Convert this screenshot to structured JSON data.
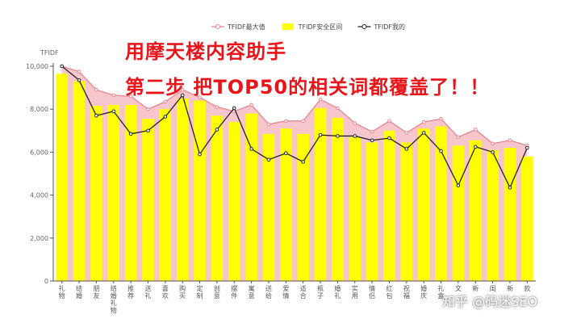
{
  "chart_data": {
    "type": "line",
    "ylabel": "TFIDF",
    "ylim": [
      0,
      10000
    ],
    "yticks": [
      0,
      2000,
      4000,
      6000,
      8000,
      10000
    ],
    "yticklabels": [
      "0",
      "2,000",
      "4,000",
      "6,000",
      "8,000",
      "10,000"
    ],
    "grid": false,
    "legend_position": "top-center",
    "categories": [
      "礼物",
      "结婚",
      "朋友",
      "结婚礼物",
      "推荐",
      "送礼",
      "喜欢",
      "购买",
      "定制",
      "创意",
      "摆件",
      "寓意",
      "送给",
      "爱情",
      "适合",
      "瓶子",
      "婚礼",
      "实用",
      "情侣",
      "红包",
      "祝福",
      "婚庆",
      "礼盒",
      "文",
      "新",
      "闺",
      "新",
      "款"
    ],
    "series": [
      {
        "name": "TFIDF最大值",
        "kind": "line",
        "color": "#e8858f",
        "values": [
          10000,
          9750,
          8900,
          8650,
          8600,
          8000,
          8350,
          8900,
          8550,
          8100,
          7900,
          8200,
          7300,
          7450,
          7450,
          8450,
          8050,
          7350,
          6950,
          7450,
          6900,
          7400,
          7550,
          6700,
          7050,
          6400,
          6550,
          6300
        ]
      },
      {
        "name": "TFIDF安全区间",
        "kind": "bar",
        "color": "#ffff00",
        "values": [
          9650,
          9300,
          8150,
          8200,
          8200,
          7550,
          8000,
          8500,
          8400,
          7700,
          7400,
          7800,
          6850,
          7100,
          6850,
          8050,
          7600,
          6700,
          6450,
          7000,
          6450,
          7100,
          7200,
          6300,
          6550,
          6100,
          6200,
          5800
        ]
      },
      {
        "name": "TFIDF我的",
        "kind": "line",
        "color": "#222222",
        "values": [
          10000,
          9350,
          7700,
          7900,
          6850,
          7000,
          7650,
          8650,
          5900,
          7050,
          8050,
          6150,
          5650,
          5950,
          5550,
          6800,
          6750,
          6750,
          6550,
          6650,
          6150,
          6900,
          6050,
          4450,
          6250,
          6000,
          4350,
          6200
        ]
      }
    ]
  },
  "overlay": {
    "line1": "用摩天楼内容助手",
    "line2": "第二步 把TOP50的相关词都覆盖了！！"
  },
  "watermark": "知乎 @码迷SEO"
}
